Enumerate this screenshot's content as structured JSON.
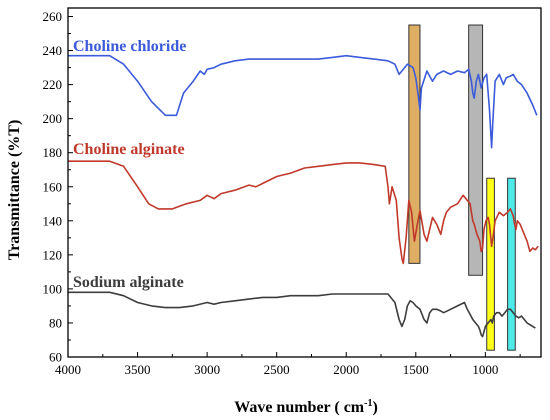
{
  "chart_data": {
    "type": "line",
    "title": "",
    "xlabel": "Wave number ( cm",
    "xlabel_sup": "-1",
    "xlabel_close": ")",
    "ylabel": "Transmittance (%T)",
    "xlim": [
      4000,
      600
    ],
    "ylim": [
      60,
      265
    ],
    "x_reversed": true,
    "grid": false,
    "legend": "none",
    "xticks": [
      4000,
      3500,
      3000,
      2500,
      2000,
      1500,
      1000
    ],
    "xtick_labels": [
      "4000",
      "3500",
      "3000",
      "2500",
      "2000",
      "1500",
      "1000"
    ],
    "yticks": [
      60,
      80,
      100,
      120,
      140,
      160,
      180,
      200,
      220,
      240,
      260
    ],
    "ytick_labels": [
      "60",
      "80",
      "100",
      "120",
      "140",
      "160",
      "180",
      "200",
      "220",
      "240",
      "260"
    ],
    "series": [
      {
        "name": "Choline chloride",
        "color": "#3b5bdb",
        "points": [
          [
            4000,
            237
          ],
          [
            3800,
            237
          ],
          [
            3700,
            237
          ],
          [
            3600,
            232
          ],
          [
            3500,
            222
          ],
          [
            3400,
            210
          ],
          [
            3300,
            202
          ],
          [
            3220,
            202
          ],
          [
            3170,
            215
          ],
          [
            3100,
            222
          ],
          [
            3050,
            228
          ],
          [
            3020,
            226
          ],
          [
            3000,
            229
          ],
          [
            2950,
            230
          ],
          [
            2900,
            232
          ],
          [
            2800,
            234
          ],
          [
            2700,
            235
          ],
          [
            2600,
            235
          ],
          [
            2500,
            235
          ],
          [
            2400,
            235
          ],
          [
            2300,
            235
          ],
          [
            2200,
            235
          ],
          [
            2100,
            236
          ],
          [
            2000,
            237
          ],
          [
            1900,
            236
          ],
          [
            1800,
            235
          ],
          [
            1700,
            234
          ],
          [
            1650,
            232
          ],
          [
            1620,
            226
          ],
          [
            1600,
            228
          ],
          [
            1560,
            232
          ],
          [
            1520,
            230
          ],
          [
            1500,
            224
          ],
          [
            1480,
            212
          ],
          [
            1470,
            205
          ],
          [
            1460,
            218
          ],
          [
            1420,
            228
          ],
          [
            1380,
            222
          ],
          [
            1350,
            226
          ],
          [
            1300,
            228
          ],
          [
            1250,
            226
          ],
          [
            1200,
            228
          ],
          [
            1150,
            227
          ],
          [
            1120,
            229
          ],
          [
            1100,
            222
          ],
          [
            1090,
            215
          ],
          [
            1080,
            212
          ],
          [
            1065,
            222
          ],
          [
            1050,
            226
          ],
          [
            1030,
            218
          ],
          [
            1010,
            224
          ],
          [
            990,
            226
          ],
          [
            970,
            205
          ],
          [
            955,
            183
          ],
          [
            945,
            200
          ],
          [
            930,
            222
          ],
          [
            900,
            226
          ],
          [
            870,
            220
          ],
          [
            850,
            224
          ],
          [
            820,
            225
          ],
          [
            800,
            226
          ],
          [
            770,
            222
          ],
          [
            740,
            220
          ],
          [
            700,
            215
          ],
          [
            660,
            208
          ],
          [
            630,
            202
          ]
        ]
      },
      {
        "name": "Choline alginate",
        "color": "#c0392b",
        "points": [
          [
            4000,
            175
          ],
          [
            3800,
            175
          ],
          [
            3700,
            175
          ],
          [
            3600,
            172
          ],
          [
            3500,
            160
          ],
          [
            3420,
            150
          ],
          [
            3350,
            147
          ],
          [
            3250,
            147
          ],
          [
            3150,
            150
          ],
          [
            3050,
            152
          ],
          [
            3000,
            155
          ],
          [
            2950,
            153
          ],
          [
            2900,
            156
          ],
          [
            2800,
            158
          ],
          [
            2700,
            161
          ],
          [
            2650,
            160
          ],
          [
            2600,
            162
          ],
          [
            2500,
            166
          ],
          [
            2400,
            168
          ],
          [
            2300,
            171
          ],
          [
            2200,
            172
          ],
          [
            2100,
            173
          ],
          [
            2000,
            174
          ],
          [
            1900,
            174
          ],
          [
            1800,
            173
          ],
          [
            1720,
            172
          ],
          [
            1700,
            160
          ],
          [
            1690,
            150
          ],
          [
            1670,
            160
          ],
          [
            1640,
            152
          ],
          [
            1620,
            130
          ],
          [
            1600,
            118
          ],
          [
            1590,
            115
          ],
          [
            1570,
            130
          ],
          [
            1550,
            152
          ],
          [
            1530,
            145
          ],
          [
            1510,
            128
          ],
          [
            1495,
            135
          ],
          [
            1480,
            142
          ],
          [
            1470,
            146
          ],
          [
            1440,
            132
          ],
          [
            1420,
            128
          ],
          [
            1400,
            135
          ],
          [
            1380,
            142
          ],
          [
            1350,
            138
          ],
          [
            1320,
            132
          ],
          [
            1300,
            140
          ],
          [
            1280,
            145
          ],
          [
            1250,
            148
          ],
          [
            1200,
            150
          ],
          [
            1160,
            155
          ],
          [
            1130,
            152
          ],
          [
            1110,
            150
          ],
          [
            1100,
            145
          ],
          [
            1090,
            140
          ],
          [
            1080,
            138
          ],
          [
            1060,
            132
          ],
          [
            1040,
            128
          ],
          [
            1030,
            122
          ],
          [
            1020,
            124
          ],
          [
            1010,
            135
          ],
          [
            995,
            140
          ],
          [
            980,
            142
          ],
          [
            970,
            138
          ],
          [
            955,
            125
          ],
          [
            945,
            130
          ],
          [
            930,
            140
          ],
          [
            900,
            145
          ],
          [
            870,
            143
          ],
          [
            840,
            145
          ],
          [
            820,
            147
          ],
          [
            800,
            143
          ],
          [
            790,
            138
          ],
          [
            780,
            135
          ],
          [
            770,
            140
          ],
          [
            750,
            138
          ],
          [
            720,
            132
          ],
          [
            700,
            128
          ],
          [
            680,
            122
          ],
          [
            660,
            124
          ],
          [
            640,
            123
          ],
          [
            620,
            125
          ]
        ]
      },
      {
        "name": "Sodium alginate",
        "color": "#3d3d3d",
        "points": [
          [
            4000,
            98
          ],
          [
            3900,
            98
          ],
          [
            3800,
            98
          ],
          [
            3700,
            98
          ],
          [
            3600,
            96
          ],
          [
            3500,
            92
          ],
          [
            3400,
            90
          ],
          [
            3300,
            89
          ],
          [
            3200,
            89
          ],
          [
            3100,
            90
          ],
          [
            3000,
            92
          ],
          [
            2950,
            91
          ],
          [
            2900,
            92
          ],
          [
            2800,
            93
          ],
          [
            2700,
            94
          ],
          [
            2600,
            95
          ],
          [
            2500,
            95
          ],
          [
            2400,
            96
          ],
          [
            2300,
            96
          ],
          [
            2200,
            96
          ],
          [
            2100,
            97
          ],
          [
            2000,
            97
          ],
          [
            1900,
            97
          ],
          [
            1800,
            97
          ],
          [
            1700,
            97
          ],
          [
            1650,
            92
          ],
          [
            1620,
            82
          ],
          [
            1600,
            78
          ],
          [
            1580,
            82
          ],
          [
            1560,
            90
          ],
          [
            1540,
            93
          ],
          [
            1520,
            92
          ],
          [
            1500,
            90
          ],
          [
            1470,
            88
          ],
          [
            1440,
            82
          ],
          [
            1420,
            80
          ],
          [
            1400,
            86
          ],
          [
            1380,
            88
          ],
          [
            1350,
            88
          ],
          [
            1320,
            87
          ],
          [
            1300,
            86
          ],
          [
            1250,
            88
          ],
          [
            1200,
            90
          ],
          [
            1150,
            92
          ],
          [
            1130,
            88
          ],
          [
            1110,
            85
          ],
          [
            1090,
            82
          ],
          [
            1070,
            80
          ],
          [
            1050,
            78
          ],
          [
            1040,
            76
          ],
          [
            1030,
            73
          ],
          [
            1020,
            72
          ],
          [
            1010,
            75
          ],
          [
            1000,
            78
          ],
          [
            980,
            80
          ],
          [
            960,
            82
          ],
          [
            950,
            80
          ],
          [
            940,
            84
          ],
          [
            920,
            86
          ],
          [
            900,
            86
          ],
          [
            880,
            84
          ],
          [
            860,
            86
          ],
          [
            840,
            88
          ],
          [
            820,
            88
          ],
          [
            800,
            86
          ],
          [
            780,
            84
          ],
          [
            760,
            83
          ],
          [
            740,
            84
          ],
          [
            720,
            82
          ],
          [
            700,
            80
          ],
          [
            680,
            79
          ],
          [
            660,
            78
          ],
          [
            640,
            77
          ]
        ]
      }
    ],
    "highlight_bands": [
      {
        "x_from": 1550,
        "x_to": 1470,
        "y_from": 115,
        "y_to": 255,
        "color": "#d9a04a",
        "opacity": 0.85
      },
      {
        "x_from": 1120,
        "x_to": 1020,
        "y_from": 108,
        "y_to": 255,
        "color": "#a9a9a9",
        "opacity": 0.85
      },
      {
        "x_from": 990,
        "x_to": 935,
        "y_from": 64,
        "y_to": 165,
        "color": "#ffff00",
        "opacity": 0.9
      },
      {
        "x_from": 840,
        "x_to": 785,
        "y_from": 64,
        "y_to": 165,
        "color": "#2ee6e6",
        "opacity": 0.85
      }
    ]
  }
}
